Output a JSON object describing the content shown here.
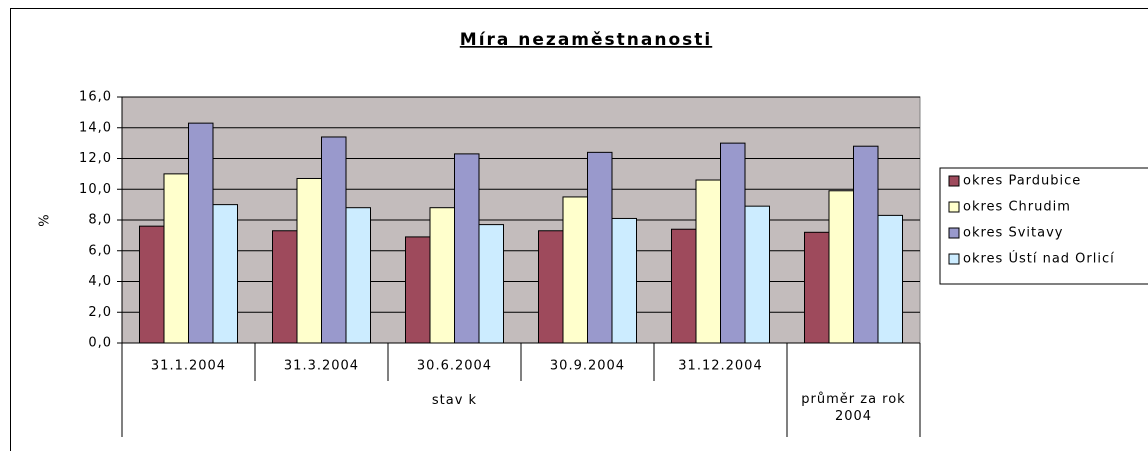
{
  "chart_data": {
    "type": "bar",
    "title": "Míra nezaměstnanosti",
    "y_label": "%",
    "categories": [
      "31.1.2004",
      "31.3.2004",
      "30.6.2004",
      "30.9.2004",
      "31.12.2004",
      null
    ],
    "groups": [
      {
        "name": "stav k",
        "count": 5
      },
      {
        "name": "průměr za rok 2004",
        "count": 1
      }
    ],
    "series": [
      {
        "name": "okres Pardubice",
        "color": "#9e4a5c",
        "values": [
          7.6,
          7.3,
          6.9,
          7.3,
          7.4,
          7.2
        ]
      },
      {
        "name": "okres Chrudim",
        "color": "#ffffcc",
        "values": [
          11.0,
          10.7,
          8.8,
          9.5,
          10.6,
          9.9
        ]
      },
      {
        "name": "okres Svitavy",
        "color": "#9999cc",
        "values": [
          14.3,
          13.4,
          12.3,
          12.4,
          13.0,
          12.8
        ]
      },
      {
        "name": "okres Ústí nad Orlicí",
        "color": "#ccecff",
        "values": [
          9.0,
          8.8,
          7.7,
          8.1,
          8.9,
          8.3
        ]
      }
    ],
    "ylim": [
      0,
      16
    ],
    "yticks": [
      {
        "value": 0,
        "label": "0,0"
      },
      {
        "value": 2,
        "label": "2,0"
      },
      {
        "value": 4,
        "label": "4,0"
      },
      {
        "value": 6,
        "label": "6,0"
      },
      {
        "value": 8,
        "label": "8,0"
      },
      {
        "value": 10,
        "label": "10,0"
      },
      {
        "value": 12,
        "label": "12,0"
      },
      {
        "value": 14,
        "label": "14,0"
      },
      {
        "value": 16,
        "label": "16,0"
      }
    ],
    "grid": true,
    "plot_background": "#c3bcbc",
    "legend": "right"
  }
}
